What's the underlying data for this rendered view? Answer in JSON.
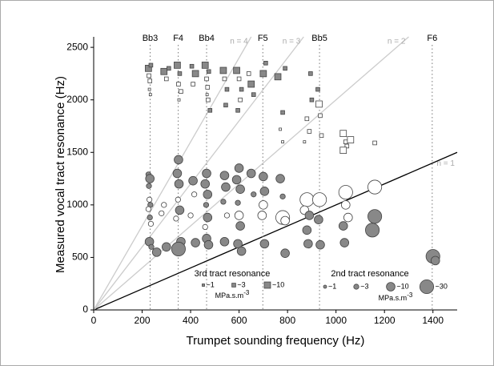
{
  "chart_data": {
    "type": "scatter",
    "x_label": "Trumpet sounding frequency (Hz)",
    "y_label": "Measured vocal tract resonance (Hz)",
    "xlim": [
      0,
      1500
    ],
    "ylim": [
      0,
      2600
    ],
    "xticks": [
      0,
      200,
      400,
      600,
      800,
      1000,
      1200,
      1400
    ],
    "yticks": [
      0,
      500,
      1000,
      1500,
      2000,
      2500
    ],
    "notes": [
      {
        "label": "Bb3",
        "value": 233
      },
      {
        "label": "F4",
        "value": 349
      },
      {
        "label": "Bb4",
        "value": 466
      },
      {
        "label": "F5",
        "value": 698
      },
      {
        "label": "Bb5",
        "value": 932
      },
      {
        "label": "F6",
        "value": 1397
      }
    ],
    "harmonic_lines": [
      {
        "label": "n = 1",
        "n": 1,
        "color": "#000000"
      },
      {
        "label": "n = 2",
        "n": 2,
        "color": "#cccccc"
      },
      {
        "label": "n = 3",
        "n": 3,
        "color": "#cccccc"
      },
      {
        "label": "n = 4",
        "n": 4,
        "color": "#cccccc"
      }
    ],
    "size_unit": "MPa.s.m",
    "size_unit_exponent": "-3",
    "series": [
      {
        "name": "3rd tract resonance",
        "marker": "square",
        "legend_sizes": [
          {
            "value": 1,
            "label": "~1"
          },
          {
            "value": 3,
            "label": "~3"
          },
          {
            "value": 10,
            "label": "~10"
          }
        ],
        "x": [
          228,
          232,
          226,
          236,
          230,
          234,
          290,
          300,
          310,
          350,
          345,
          355,
          360,
          352,
          410,
          420,
          405,
          466,
          470,
          460,
          475,
          468,
          480,
          472,
          540,
          550,
          535,
          545,
          600,
          590,
          610,
          605,
          595,
          640,
          650,
          660,
          700,
          710,
          760,
          790,
          780,
          770,
          780,
          880,
          890,
          900,
          895,
          870,
          930,
          935,
          940,
          925,
          1030,
          1040,
          1045,
          1030,
          1060,
          1160
        ],
        "values": [
          2230,
          2180,
          2300,
          2330,
          2100,
          2050,
          2270,
          2200,
          2300,
          2150,
          2330,
          2250,
          2080,
          2000,
          2150,
          2250,
          2320,
          2200,
          2120,
          2330,
          2270,
          2050,
          1900,
          2000,
          2200,
          2100,
          2280,
          1950,
          2200,
          2280,
          2100,
          2000,
          1900,
          2250,
          2150,
          2050,
          2250,
          2350,
          2220,
          2300,
          1600,
          1720,
          1880,
          1820,
          1700,
          2000,
          2250,
          1600,
          1960,
          1850,
          1660,
          2100,
          1680,
          1600,
          1560,
          1520,
          1620,
          1590
        ],
        "sizes": [
          3,
          3,
          10,
          3,
          1,
          1,
          10,
          3,
          3,
          3,
          10,
          3,
          3,
          1,
          3,
          10,
          3,
          3,
          3,
          10,
          3,
          1,
          3,
          3,
          3,
          3,
          10,
          3,
          3,
          10,
          3,
          3,
          3,
          3,
          10,
          3,
          10,
          3,
          10,
          3,
          1,
          1,
          3,
          3,
          3,
          3,
          3,
          1,
          10,
          3,
          3,
          3,
          10,
          3,
          3,
          10,
          10,
          3
        ],
        "fills": [
          "#ffffff",
          "#ffffff",
          "#888888",
          "#888888",
          "#ffffff",
          "#ffffff",
          "#888888",
          "#ffffff",
          "#888888",
          "#ffffff",
          "#888888",
          "#888888",
          "#ffffff",
          "#ffffff",
          "#ffffff",
          "#888888",
          "#888888",
          "#ffffff",
          "#ffffff",
          "#888888",
          "#888888",
          "#ffffff",
          "#888888",
          "#ffffff",
          "#ffffff",
          "#888888",
          "#888888",
          "#888888",
          "#ffffff",
          "#888888",
          "#888888",
          "#ffffff",
          "#888888",
          "#ffffff",
          "#888888",
          "#888888",
          "#888888",
          "#888888",
          "#888888",
          "#888888",
          "#ffffff",
          "#ffffff",
          "#888888",
          "#ffffff",
          "#ffffff",
          "#888888",
          "#888888",
          "#ffffff",
          "#ffffff",
          "#ffffff",
          "#ffffff",
          "#888888",
          "#ffffff",
          "#ffffff",
          "#ffffff",
          "#ffffff",
          "#ffffff",
          "#ffffff"
        ]
      },
      {
        "name": "2nd tract resonance",
        "marker": "circle",
        "legend_sizes": [
          {
            "value": 1,
            "label": "~1"
          },
          {
            "value": 3,
            "label": "~3"
          },
          {
            "value": 10,
            "label": "~10"
          },
          {
            "value": 30,
            "label": "~30"
          }
        ],
        "x": [
          226,
          232,
          228,
          230,
          234,
          226,
          232,
          236,
          230,
          238,
          260,
          280,
          290,
          300,
          350,
          345,
          352,
          348,
          355,
          340,
          360,
          350,
          410,
          415,
          400,
          420,
          466,
          460,
          470,
          464,
          470,
          460,
          466,
          474,
          540,
          545,
          535,
          550,
          540,
          600,
          590,
          605,
          595,
          600,
          605,
          595,
          610,
          650,
          660,
          700,
          705,
          700,
          695,
          705,
          770,
          780,
          780,
          790,
          790,
          880,
          870,
          890,
          880,
          885,
          932,
          928,
          935,
          1040,
          1040,
          1050,
          1030,
          1035,
          1160,
          1160,
          1150,
          1400,
          1410
        ],
        "values": [
          1290,
          1250,
          1180,
          1050,
          1000,
          960,
          880,
          820,
          650,
          600,
          550,
          920,
          1000,
          600,
          1430,
          1300,
          1200,
          1050,
          950,
          870,
          650,
          580,
          1230,
          1100,
          900,
          640,
          1300,
          1200,
          1100,
          1000,
          880,
          790,
          680,
          620,
          1280,
          1170,
          1030,
          900,
          650,
          1350,
          1240,
          1150,
          1020,
          900,
          800,
          630,
          560,
          1300,
          1100,
          1270,
          1130,
          1000,
          900,
          630,
          1250,
          1080,
          880,
          850,
          540,
          1050,
          950,
          900,
          760,
          630,
          1050,
          860,
          620,
          1120,
          1000,
          880,
          800,
          640,
          1170,
          890,
          760,
          510,
          470
        ],
        "sizes": [
          3,
          10,
          3,
          3,
          3,
          3,
          3,
          3,
          10,
          3,
          10,
          3,
          3,
          10,
          10,
          10,
          10,
          3,
          10,
          3,
          10,
          30,
          10,
          3,
          3,
          10,
          10,
          10,
          10,
          3,
          10,
          3,
          10,
          10,
          10,
          10,
          3,
          3,
          10,
          10,
          10,
          10,
          3,
          10,
          10,
          10,
          10,
          10,
          3,
          10,
          10,
          10,
          10,
          10,
          10,
          3,
          30,
          10,
          10,
          30,
          10,
          10,
          10,
          10,
          30,
          10,
          10,
          30,
          10,
          10,
          10,
          10,
          30,
          30,
          30,
          30,
          10
        ],
        "fills": [
          "#888888",
          "#888888",
          "#888888",
          "#ffffff",
          "#888888",
          "#ffffff",
          "#888888",
          "#ffffff",
          "#888888",
          "#888888",
          "#888888",
          "#ffffff",
          "#ffffff",
          "#888888",
          "#888888",
          "#888888",
          "#888888",
          "#ffffff",
          "#888888",
          "#ffffff",
          "#888888",
          "#888888",
          "#888888",
          "#ffffff",
          "#ffffff",
          "#888888",
          "#888888",
          "#888888",
          "#888888",
          "#888888",
          "#888888",
          "#ffffff",
          "#888888",
          "#888888",
          "#888888",
          "#888888",
          "#888888",
          "#ffffff",
          "#888888",
          "#888888",
          "#888888",
          "#888888",
          "#888888",
          "#ffffff",
          "#888888",
          "#888888",
          "#888888",
          "#888888",
          "#888888",
          "#888888",
          "#888888",
          "#ffffff",
          "#ffffff",
          "#888888",
          "#888888",
          "#888888",
          "#ffffff",
          "#ffffff",
          "#888888",
          "#ffffff",
          "#ffffff",
          "#888888",
          "#888888",
          "#888888",
          "#ffffff",
          "#888888",
          "#888888",
          "#ffffff",
          "#ffffff",
          "#ffffff",
          "#888888",
          "#888888",
          "#ffffff",
          "#888888",
          "#888888",
          "#888888",
          "#888888"
        ]
      }
    ]
  }
}
